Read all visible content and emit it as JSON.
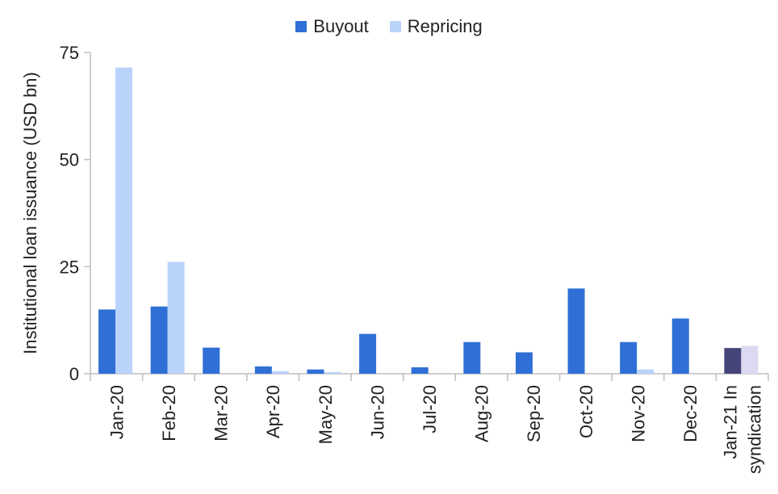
{
  "chart_data": {
    "type": "bar",
    "ylabel": "Institutional loan issuance (USD bn)",
    "ylim": [
      0,
      75
    ],
    "yticks": [
      0,
      25,
      50,
      75
    ],
    "categories": [
      "Jan-20",
      "Feb-20",
      "Mar-20",
      "Apr-20",
      "May-20",
      "Jun-20",
      "Jul-20",
      "Aug-20",
      "Sep-20",
      "Oct-20",
      "Nov-20",
      "Dec-20",
      "Jan-21 In\nsyndication"
    ],
    "series": [
      {
        "name": "Buyout",
        "color": "#3070d6",
        "values": [
          15,
          15.7,
          6.1,
          1.7,
          1,
          9.3,
          1.5,
          7.4,
          5,
          19.9,
          7.4,
          12.9,
          6
        ],
        "last_color": "#45457a"
      },
      {
        "name": "Repricing",
        "color": "#b9d3fb",
        "values": [
          71.5,
          26.1,
          0,
          0.6,
          0.4,
          0,
          0,
          0,
          0,
          0,
          1,
          0,
          6.5
        ],
        "last_color": "#dcd9f3"
      }
    ],
    "legend": "top-center",
    "grid": false
  }
}
